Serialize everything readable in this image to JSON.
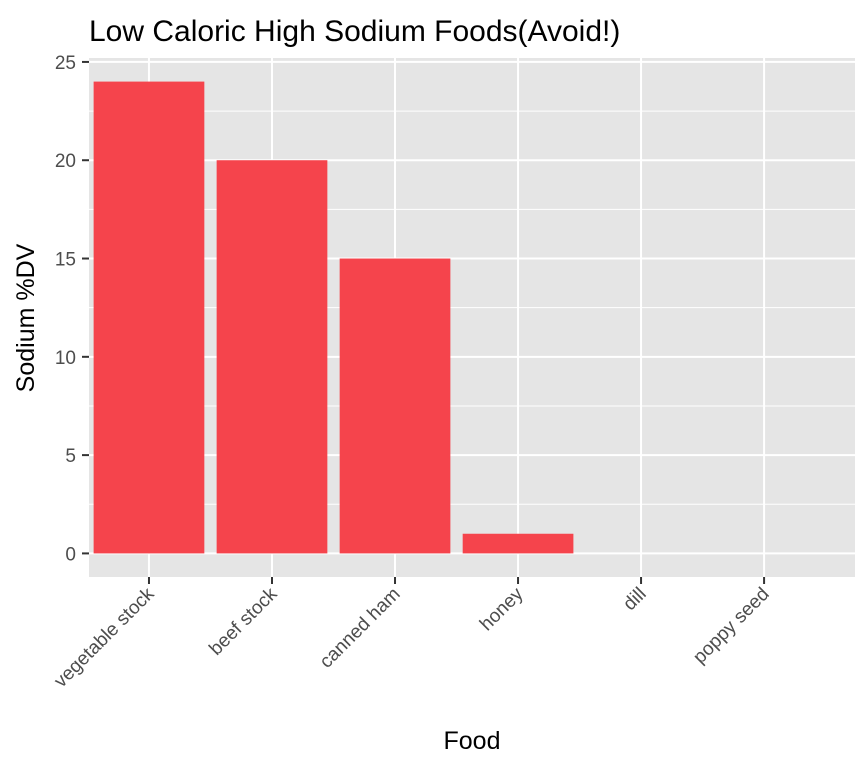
{
  "chart_data": {
    "type": "bar",
    "title": "Low Caloric High Sodium Foods(Avoid!)",
    "xlabel": "Food",
    "ylabel": "Sodium %DV",
    "categories": [
      "vegetable stock",
      "beef stock",
      "canned ham",
      "honey",
      "dill",
      "poppy seed"
    ],
    "values": [
      24,
      20,
      15,
      1,
      0,
      0
    ],
    "ylim": [
      -1.2,
      25.2
    ],
    "yticks": [
      "0",
      "5",
      "10",
      "15",
      "20",
      "25"
    ],
    "grid": true,
    "colors": {
      "bar": "#f5444c",
      "panel": "#e5e5e5",
      "grid": "#ffffff",
      "tick": "#333333"
    }
  }
}
